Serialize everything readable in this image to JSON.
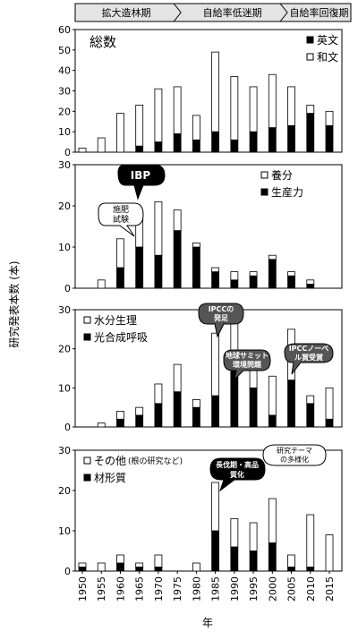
{
  "era_bar": [
    {
      "label": "拡大造林期",
      "start": 1950,
      "end": 1975
    },
    {
      "label": "自給率低迷期",
      "start": 1975,
      "end": 2003
    },
    {
      "label": "自給率回復期",
      "start": 2003,
      "end": 2015
    }
  ],
  "y_axis_title": "研究発表本数 (本)",
  "x_axis_title": "年",
  "x_ticks": [
    "1950",
    "1955",
    "1960",
    "1965",
    "1970",
    "1975",
    "1980",
    "1985",
    "1990",
    "1995",
    "2000",
    "2005",
    "2010",
    "2015"
  ],
  "colors": {
    "filled": "#000000",
    "open": "#ffffff",
    "callout_dark": "#000000",
    "callout_gray": "#555555"
  },
  "chart_data": [
    {
      "type": "bar",
      "stacked": true,
      "title": "総数",
      "x": [
        1950,
        1955,
        1960,
        1965,
        1970,
        1975,
        1980,
        1985,
        1990,
        1995,
        2000,
        2005,
        2010,
        2015
      ],
      "ylim": [
        0,
        60
      ],
      "yticks": [
        0,
        10,
        20,
        30,
        40,
        50,
        60
      ],
      "legend_position": "top-right",
      "series": [
        {
          "name": "英文",
          "fill": "black",
          "values": [
            0,
            0,
            0,
            3,
            5,
            9,
            6,
            10,
            6,
            10,
            12,
            13,
            19,
            13
          ]
        },
        {
          "name": "和文",
          "fill": "white",
          "values": [
            2,
            7,
            19,
            20,
            26,
            23,
            12,
            39,
            31,
            22,
            26,
            19,
            4,
            7
          ]
        }
      ],
      "annotations": []
    },
    {
      "type": "bar",
      "stacked": true,
      "title": "",
      "x": [
        1950,
        1955,
        1960,
        1965,
        1970,
        1975,
        1980,
        1985,
        1990,
        1995,
        2000,
        2005,
        2010,
        2015
      ],
      "ylim": [
        0,
        30
      ],
      "yticks": [
        0,
        10,
        20,
        30
      ],
      "legend_position": "top-right",
      "series": [
        {
          "name": "生産力",
          "fill": "black",
          "values": [
            0,
            0,
            5,
            10,
            8,
            14,
            10,
            4,
            2,
            3,
            7,
            3,
            1,
            0
          ]
        },
        {
          "name": "養分",
          "fill": "white",
          "values": [
            0,
            2,
            7,
            8,
            13,
            5,
            1,
            1,
            2,
            1,
            1,
            1,
            1,
            0
          ]
        }
      ],
      "annotations": [
        {
          "text": [
            "IBP"
          ],
          "style": "dark",
          "at": 1964
        },
        {
          "text": [
            "施肥",
            "試験"
          ],
          "style": "outline",
          "at": 1958
        }
      ]
    },
    {
      "type": "bar",
      "stacked": true,
      "title": "",
      "x": [
        1950,
        1955,
        1960,
        1965,
        1970,
        1975,
        1980,
        1985,
        1990,
        1995,
        2000,
        2005,
        2010,
        2015
      ],
      "ylim": [
        0,
        30
      ],
      "yticks": [
        0,
        10,
        20,
        30
      ],
      "legend_position": "top-left",
      "series": [
        {
          "name": "光合成呼吸",
          "fill": "black",
          "values": [
            0,
            0,
            2,
            3,
            6,
            9,
            5,
            8,
            17,
            10,
            3,
            12,
            6,
            2
          ]
        },
        {
          "name": "水分生理",
          "fill": "white",
          "values": [
            0,
            1,
            2,
            2,
            5,
            7,
            2,
            16,
            11,
            8,
            10,
            13,
            2,
            8
          ]
        }
      ],
      "annotations": [
        {
          "text": [
            "IPCCの",
            "発足"
          ],
          "style": "gray",
          "at": 1988
        },
        {
          "text": [
            "地球サミット",
            "環境問題"
          ],
          "style": "gray",
          "at": 1993
        },
        {
          "text": [
            "IPCCノーベ",
            "ル賞受賞"
          ],
          "style": "gray",
          "at": 2007
        }
      ]
    },
    {
      "type": "bar",
      "stacked": true,
      "title": "",
      "x": [
        1950,
        1955,
        1960,
        1965,
        1970,
        1975,
        1980,
        1985,
        1990,
        1995,
        2000,
        2005,
        2010,
        2015
      ],
      "ylim": [
        0,
        30
      ],
      "yticks": [
        0,
        10,
        20,
        30
      ],
      "legend_position": "top-left",
      "series": [
        {
          "name": "材形質",
          "fill": "black",
          "values": [
            1,
            0,
            2,
            1,
            1,
            0,
            0,
            10,
            6,
            5,
            7,
            1,
            1,
            0
          ]
        },
        {
          "name": "その他",
          "name_note": "(根の研究など)",
          "fill": "white",
          "values": [
            1,
            2,
            2,
            1,
            3,
            0,
            2,
            12,
            7,
            7,
            11,
            3,
            13,
            9
          ]
        }
      ],
      "annotations": [
        {
          "text": [
            "長伐期・高品",
            "質化"
          ],
          "style": "dark",
          "at": 1990
        },
        {
          "text": [
            "研究テーマ",
            "の多様化"
          ],
          "style": "outline",
          "at": 2005
        }
      ]
    }
  ]
}
